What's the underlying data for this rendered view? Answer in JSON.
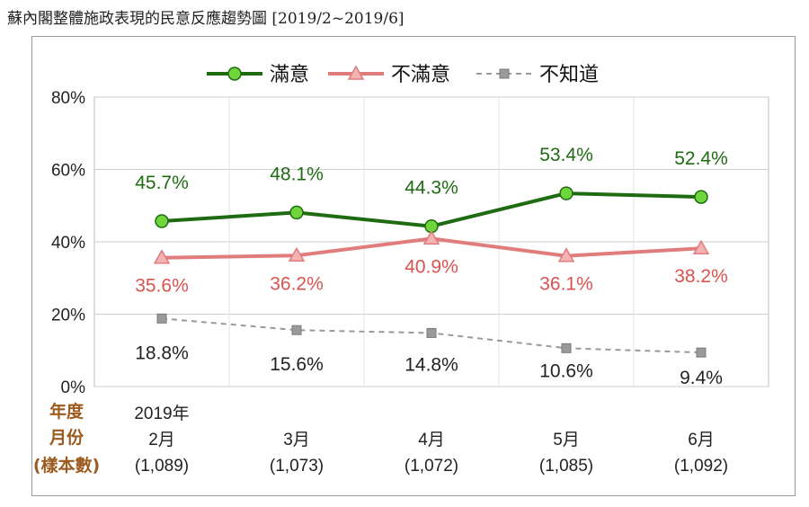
{
  "title": "蘇內閣整體施政表現的民意反應趨勢圖 [2019/2~2019/6]",
  "row_header": [
    "年度",
    "月份",
    "(樣本數)"
  ],
  "chart_data": {
    "type": "line",
    "categories": [
      [
        "2019年",
        "2月",
        "(1,089)"
      ],
      [
        "3月",
        "(1,073)"
      ],
      [
        "4月",
        "(1,072)"
      ],
      [
        "5月",
        "(1,085)"
      ],
      [
        "6月",
        "(1,092)"
      ]
    ],
    "ylim": [
      0,
      80
    ],
    "yticks": [
      "0%",
      "20%",
      "40%",
      "60%",
      "80%"
    ],
    "ytick_values": [
      0,
      20,
      40,
      60,
      80
    ],
    "grid": true,
    "legend": "top",
    "series": [
      {
        "name": "滿意",
        "values": [
          45.7,
          48.1,
          44.3,
          53.4,
          52.4
        ],
        "labels": [
          "45.7%",
          "48.1%",
          "44.3%",
          "53.4%",
          "52.4%"
        ],
        "color": "#1e6b12",
        "marker_fill": "#6ed63a",
        "marker": "circle",
        "dash": false
      },
      {
        "name": "不滿意",
        "values": [
          35.6,
          36.2,
          40.9,
          36.1,
          38.2
        ],
        "labels": [
          "35.6%",
          "36.2%",
          "40.9%",
          "36.1%",
          "38.2%"
        ],
        "color": "#e07c7c",
        "label_color": "#d9534f",
        "marker_fill": "#f3b3b3",
        "marker": "triangle",
        "dash": false
      },
      {
        "name": "不知道",
        "values": [
          18.8,
          15.6,
          14.8,
          10.6,
          9.4
        ],
        "labels": [
          "18.8%",
          "15.6%",
          "14.8%",
          "10.6%",
          "9.4%"
        ],
        "color": "#9a9a9a",
        "label_color": "#222222",
        "marker_fill": "#9a9a9a",
        "marker": "square",
        "dash": true
      }
    ]
  }
}
